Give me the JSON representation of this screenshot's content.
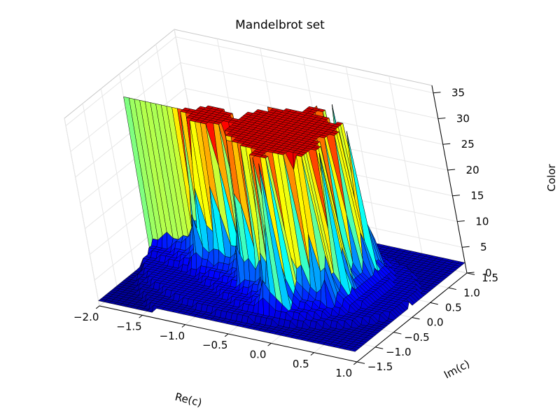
{
  "chart_data": {
    "type": "surface3d",
    "title": "Mandelbrot set",
    "xlabel": "Re(c)",
    "ylabel": "Im(c)",
    "zlabel": "Color",
    "xlim": [
      -2.0,
      1.0
    ],
    "ylim": [
      -1.5,
      1.5
    ],
    "zlim": [
      0,
      35
    ],
    "xticks": [
      -2.0,
      -1.5,
      -1.0,
      -0.5,
      0.0,
      0.5,
      1.0
    ],
    "yticks": [
      -1.5,
      -1.0,
      -0.5,
      0.0,
      0.5,
      1.0,
      1.5
    ],
    "zticks": [
      0,
      5,
      10,
      15,
      20,
      25,
      30,
      35
    ],
    "xtick_labels": [
      "−2.0",
      "−1.5",
      "−1.0",
      "−0.5",
      "0.0",
      "0.5",
      "1.0"
    ],
    "ytick_labels": [
      "−1.5",
      "−1.0",
      "−0.5",
      "0.0",
      "0.5",
      "1.0",
      "1.5"
    ],
    "ztick_labels": [
      "0",
      "5",
      "10",
      "15",
      "20",
      "25",
      "30",
      "35"
    ],
    "grid": true,
    "colormap": "jet",
    "surface_function": "mandelbrot escape iteration count",
    "max_iterations": 32,
    "colors": {
      "edge": "#000000",
      "pane": "#f2f2f2",
      "pane_side": "#ebebeb"
    }
  }
}
